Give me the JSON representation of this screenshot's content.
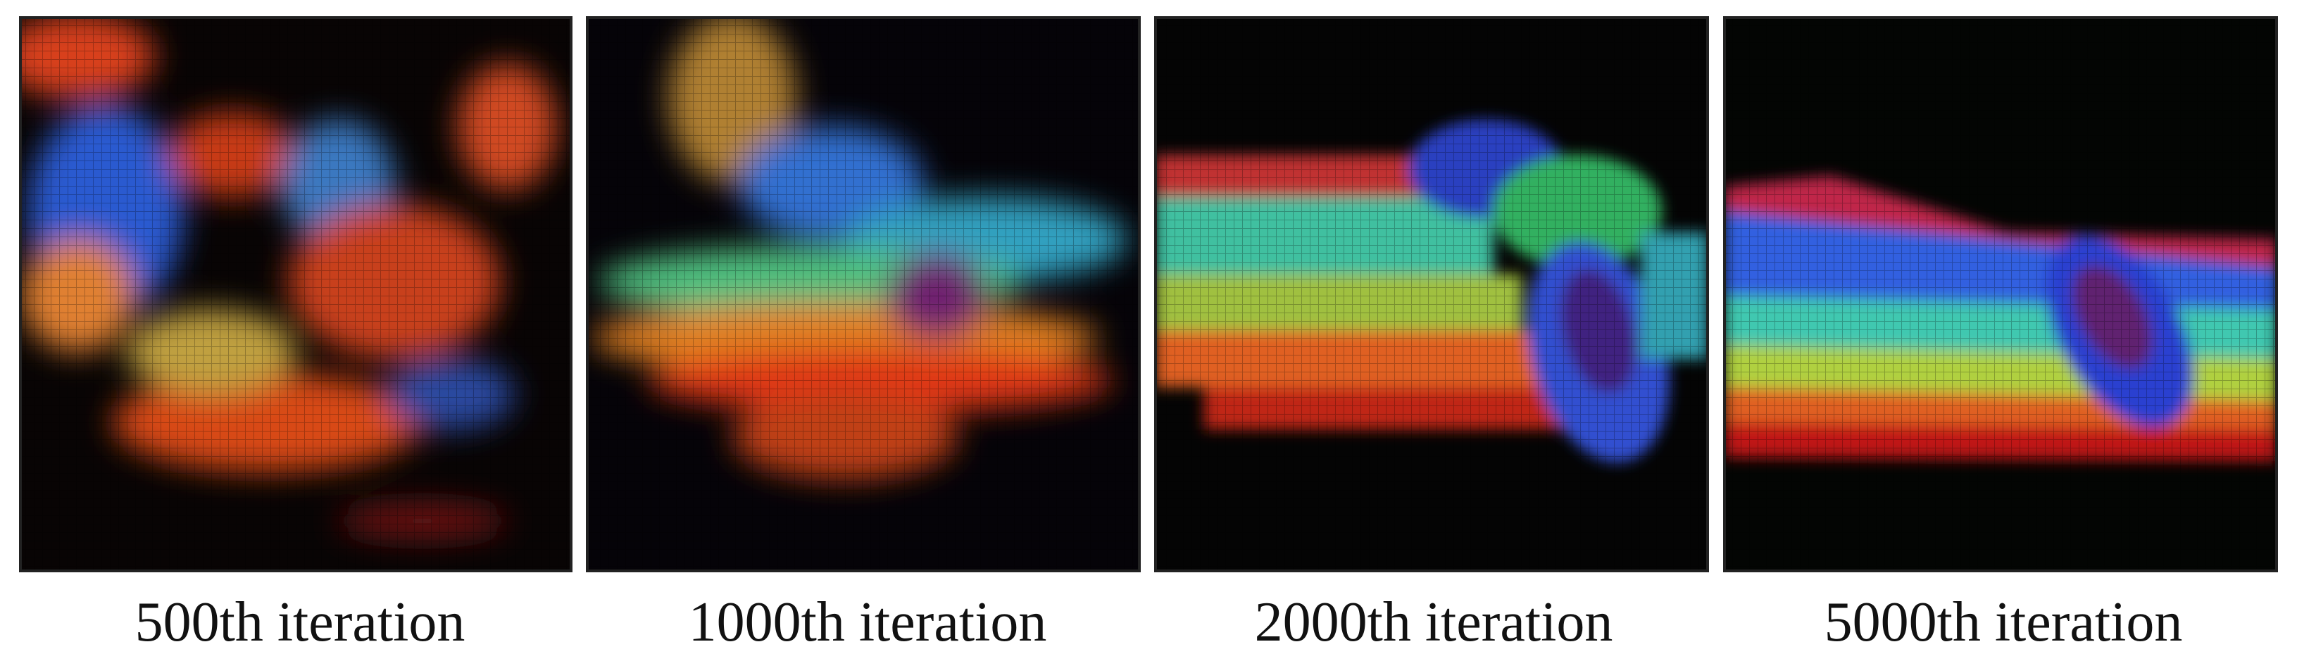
{
  "panels": [
    {
      "caption": "500th iteration"
    },
    {
      "caption": "1000th iteration"
    },
    {
      "caption": "2000th iteration"
    },
    {
      "caption": "5000th iteration"
    }
  ]
}
